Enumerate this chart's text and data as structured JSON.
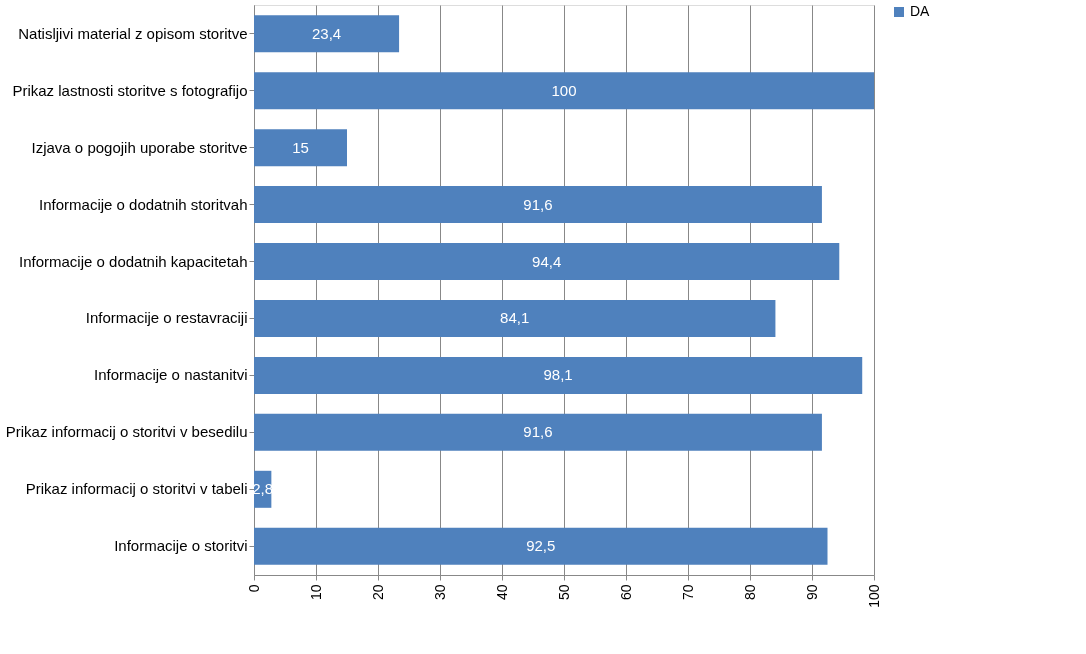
{
  "chart_data": {
    "type": "bar",
    "orientation": "horizontal",
    "categories": [
      "Natisljivi material z opisom storitve",
      "Prikaz lastnosti storitve s fotografijo",
      "Izjava o pogojih uporabe storitve",
      "Informacije o dodatnih storitvah",
      "Informacije o dodatnih kapacitetah",
      "Informacije o restavraciji",
      "Informacije o nastanitvi",
      "Prikaz informacij o storitvi v besedilu",
      "Prikaz informacij o storitvi v tabeli",
      "Informacije o storitvi"
    ],
    "series": [
      {
        "name": "DA",
        "color": "#4f81bd",
        "values": [
          23.4,
          100,
          15,
          91.6,
          94.4,
          84.1,
          98.1,
          91.6,
          2.8,
          92.5
        ],
        "value_labels": [
          "23,4",
          "100",
          "15",
          "91,6",
          "94,4",
          "84,1",
          "98,1",
          "91,6",
          "2,8",
          "92,5"
        ]
      }
    ],
    "xlim": [
      0,
      100
    ],
    "xticks": [
      0,
      10,
      20,
      30,
      40,
      50,
      60,
      70,
      80,
      90,
      100
    ],
    "grid": "x",
    "legend": "right"
  }
}
